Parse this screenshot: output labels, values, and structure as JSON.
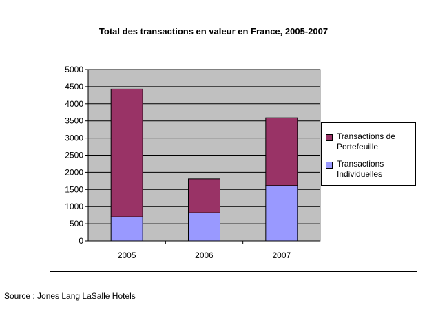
{
  "title": "Total des transactions en valeur en France, 2005-2007",
  "source": "Source : Jones Lang LaSalle Hotels",
  "colors": {
    "plot_background": "#c0c0c0",
    "portefeuille": "#993366",
    "individuelles": "#9999ff"
  },
  "legend": {
    "items": [
      {
        "label": "Transactions de Portefeuille",
        "color": "#993366"
      },
      {
        "label": "Transactions Individuelles",
        "color": "#9999ff"
      }
    ]
  },
  "chart_data": {
    "type": "bar",
    "stacked": true,
    "title": "Total des transactions en valeur en France, 2005-2007",
    "xlabel": "",
    "ylabel": "",
    "categories": [
      "2005",
      "2006",
      "2007"
    ],
    "series": [
      {
        "name": "Transactions Individuelles",
        "values": [
          700,
          820,
          1610
        ],
        "color": "#9999ff"
      },
      {
        "name": "Transactions de Portefeuille",
        "values": [
          3730,
          990,
          1980
        ],
        "color": "#993366"
      }
    ],
    "ylim": [
      0,
      5000
    ],
    "yticks": [
      0,
      500,
      1000,
      1500,
      2000,
      2500,
      3000,
      3500,
      4000,
      4500,
      5000
    ],
    "grid": true,
    "legend_position": "right"
  }
}
